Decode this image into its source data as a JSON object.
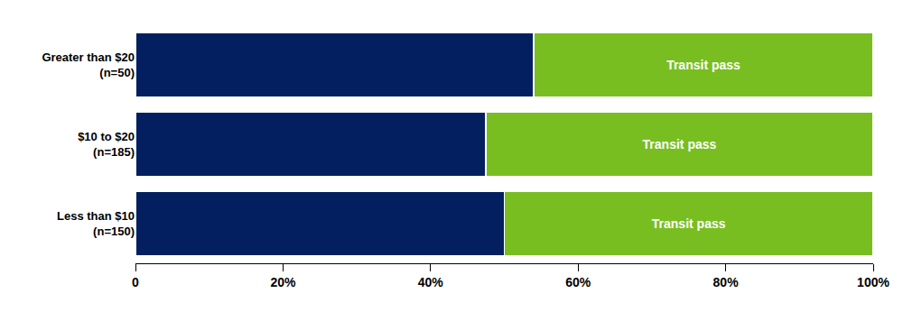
{
  "chart_data": {
    "type": "bar",
    "orientation": "horizontal",
    "stacked": true,
    "grid": false,
    "categories": [
      "Greater than $20 (n=50)",
      "$10 to $20 (n=185)",
      "Less than $10 (n=150)"
    ],
    "series": [
      {
        "color": "#041f60",
        "values": [
          54,
          47.5,
          50
        ]
      },
      {
        "name": "Transit pass",
        "color": "#78be21",
        "values": [
          46,
          52.5,
          50
        ]
      }
    ],
    "xlim": [
      0,
      100
    ],
    "xticks": [
      0,
      {
        "value": 20,
        "label": "20%"
      },
      {
        "value": 40,
        "label": "40%"
      },
      {
        "value": 60,
        "label": "60%"
      },
      {
        "value": 80,
        "label": "80%"
      },
      {
        "value": 100,
        "label": "100%"
      }
    ]
  }
}
